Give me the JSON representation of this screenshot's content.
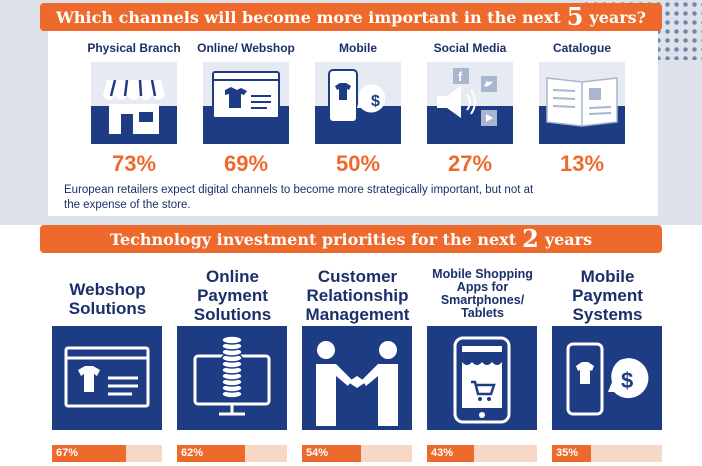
{
  "channels": {
    "title_pre": "Which channels will become more important in the next",
    "title_num": "5",
    "title_post": "years?",
    "items": [
      {
        "label": "Physical Branch",
        "pct": "73%",
        "icon": "store-icon"
      },
      {
        "label": "Online/ Webshop",
        "pct": "69%",
        "icon": "webshop-icon"
      },
      {
        "label": "Mobile",
        "pct": "50%",
        "icon": "mobile-icon"
      },
      {
        "label": "Social Media",
        "pct": "27%",
        "icon": "social-media-icon"
      },
      {
        "label": "Catalogue",
        "pct": "13%",
        "icon": "catalogue-icon"
      }
    ],
    "note": "European retailers expect digital channels to become more strategically important, but not at the expense of the store."
  },
  "tech": {
    "title_pre": "Technology investment priorities for the next",
    "title_num": "2",
    "title_post": "years",
    "items": [
      {
        "label": "Webshop Solutions",
        "pct": "67%",
        "value": 67,
        "icon": "webshop-icon"
      },
      {
        "label": "Online Payment Solutions",
        "pct": "62%",
        "value": 62,
        "icon": "payment-terminal-icon"
      },
      {
        "label": "Customer Relationship Management",
        "pct": "54%",
        "value": 54,
        "icon": "handshake-icon"
      },
      {
        "label": "Mobile Shopping Apps for Smartphones/ Tablets",
        "pct": "43%",
        "value": 43,
        "icon": "mobile-shop-icon"
      },
      {
        "label": "Mobile Payment Systems",
        "pct": "35%",
        "value": 35,
        "icon": "mobile-payment-icon"
      }
    ]
  },
  "colors": {
    "accent": "#ee6a2c",
    "navy": "#1e3c84",
    "text": "#1c2f6a",
    "bar_track": "#f7d8c6"
  }
}
